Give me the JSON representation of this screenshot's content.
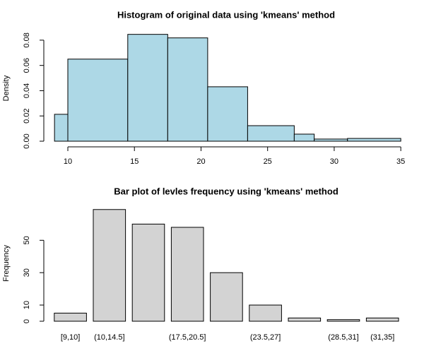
{
  "chart_data": [
    {
      "type": "histogram",
      "title": "Histogram of original data using 'kmeans' method",
      "y_label": "Density",
      "bins": [
        9,
        10,
        14.5,
        17.5,
        20.5,
        23.5,
        27,
        28.5,
        31,
        35
      ],
      "values": [
        0.0213,
        0.065,
        0.0846,
        0.0818,
        0.0431,
        0.0123,
        0.0056,
        0.0017,
        0.0022
      ],
      "color": "#add8e6",
      "xlim": [
        8,
        36
      ],
      "xticks": [
        10,
        15,
        20,
        25,
        30,
        35
      ],
      "ylim": [
        0,
        0.09
      ],
      "yticks": [
        {
          "value": 0,
          "label": "0.00"
        },
        {
          "value": 0.02,
          "label": "0.02"
        },
        {
          "value": 0.04,
          "label": "0.04"
        },
        {
          "value": 0.06,
          "label": "0.06"
        },
        {
          "value": 0.08,
          "label": "0.08"
        }
      ]
    },
    {
      "type": "bar",
      "title": "Bar plot of levles frequency using 'kmeans' method",
      "y_label": "Frequency",
      "categories": [
        "[9,10]",
        "(10,14.5]",
        null,
        "(17.5,20.5]",
        null,
        "(23.5,27]",
        null,
        "(28.5,31]",
        "(31,35]"
      ],
      "values": [
        5,
        69,
        60,
        58,
        30,
        10,
        2,
        1,
        2
      ],
      "color": "#d3d3d3",
      "ylim": [
        0,
        75
      ],
      "yticks": [
        0,
        10,
        30,
        50
      ]
    }
  ]
}
